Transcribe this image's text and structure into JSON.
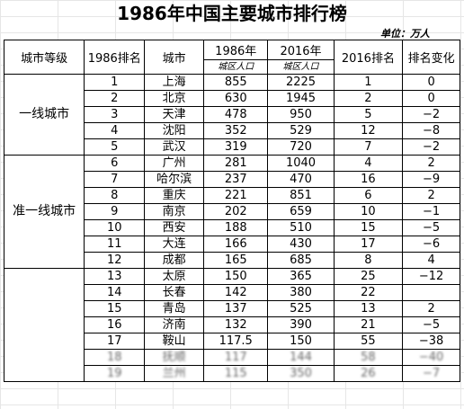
{
  "title": "1986年中国主要城市排行榜",
  "unit": "单位：万人",
  "headers": {
    "tier": "城市等级",
    "rank1986": "1986排名",
    "city": "城市",
    "pop1986": "1986年",
    "pop2016": "2016年",
    "pop_sub": "城区人口",
    "rank2016": "2016排名",
    "change": "排名变化"
  },
  "tiers": {
    "first": "一线城市",
    "quasi": "准一线城市"
  },
  "rows": [
    {
      "r86": "1",
      "city": "上海",
      "p86": "855",
      "p16": "2225",
      "r16": "1",
      "chg": "0"
    },
    {
      "r86": "2",
      "city": "北京",
      "p86": "630",
      "p16": "1945",
      "r16": "2",
      "chg": "0"
    },
    {
      "r86": "3",
      "city": "天津",
      "p86": "478",
      "p16": "950",
      "r16": "5",
      "chg": "−2"
    },
    {
      "r86": "4",
      "city": "沈阳",
      "p86": "352",
      "p16": "529",
      "r16": "12",
      "chg": "−8"
    },
    {
      "r86": "5",
      "city": "武汉",
      "p86": "319",
      "p16": "720",
      "r16": "7",
      "chg": "−2"
    },
    {
      "r86": "6",
      "city": "广州",
      "p86": "281",
      "p16": "1040",
      "r16": "4",
      "chg": "2"
    },
    {
      "r86": "7",
      "city": "哈尔滨",
      "p86": "237",
      "p16": "470",
      "r16": "16",
      "chg": "−9"
    },
    {
      "r86": "8",
      "city": "重庆",
      "p86": "221",
      "p16": "851",
      "r16": "6",
      "chg": "2"
    },
    {
      "r86": "9",
      "city": "南京",
      "p86": "202",
      "p16": "659",
      "r16": "10",
      "chg": "−1"
    },
    {
      "r86": "10",
      "city": "西安",
      "p86": "188",
      "p16": "510",
      "r16": "15",
      "chg": "−5"
    },
    {
      "r86": "11",
      "city": "大连",
      "p86": "166",
      "p16": "430",
      "r16": "17",
      "chg": "−6"
    },
    {
      "r86": "12",
      "city": "成都",
      "p86": "165",
      "p16": "685",
      "r16": "8",
      "chg": "4"
    },
    {
      "r86": "13",
      "city": "太原",
      "p86": "150",
      "p16": "365",
      "r16": "25",
      "chg": "−12"
    },
    {
      "r86": "14",
      "city": "长春",
      "p86": "142",
      "p16": "380",
      "r16": "22",
      "chg": ""
    },
    {
      "r86": "15",
      "city": "青岛",
      "p86": "137",
      "p16": "525",
      "r16": "13",
      "chg": "2"
    },
    {
      "r86": "16",
      "city": "济南",
      "p86": "132",
      "p16": "390",
      "r16": "21",
      "chg": "−5"
    },
    {
      "r86": "17",
      "city": "鞍山",
      "p86": "117.5",
      "p16": "150",
      "r16": "55",
      "chg": "−38"
    },
    {
      "r86": "18",
      "city": "抚顺",
      "p86": "117",
      "p16": "144",
      "r16": "58",
      "chg": "−40"
    },
    {
      "r86": "19",
      "city": "兰州",
      "p86": "115",
      "p16": "350",
      "r16": "26",
      "chg": "−7"
    }
  ]
}
